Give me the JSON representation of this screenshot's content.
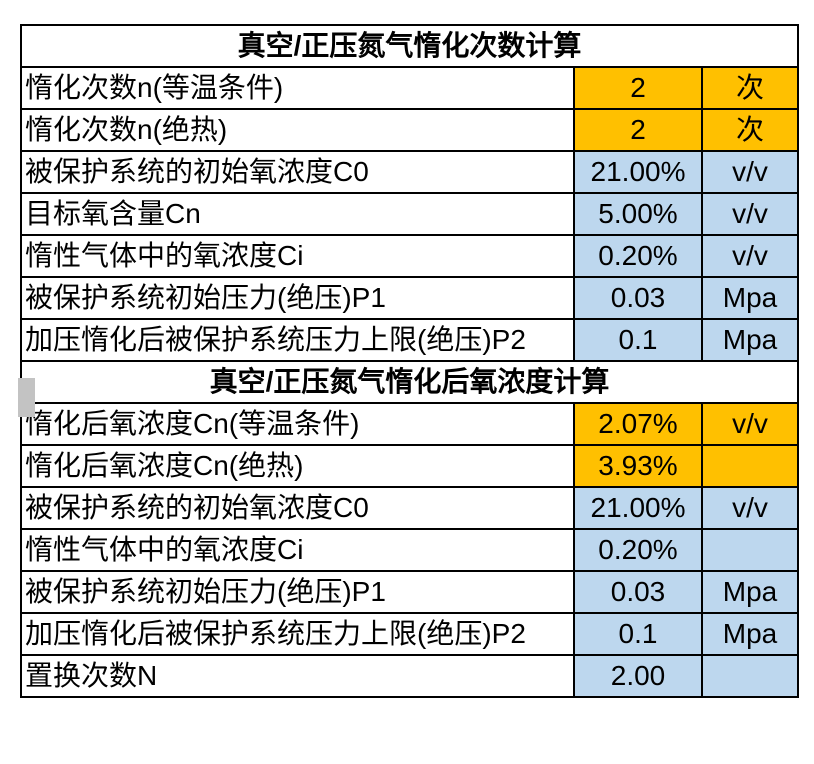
{
  "colors": {
    "result_highlight": "#FFC000",
    "input_highlight": "#BDD7EE",
    "border": "#000000",
    "gray_marker": "#C3C3C3"
  },
  "sections": [
    {
      "title": "真空/正压氮气惰化次数计算",
      "rows": [
        {
          "label": "惰化次数n(等温条件)",
          "value": "2",
          "unit": "次",
          "highlight": "orange"
        },
        {
          "label": "惰化次数n(绝热)",
          "value": "2",
          "unit": "次",
          "highlight": "orange"
        },
        {
          "label": "被保护系统的初始氧浓度C0",
          "value": "21.00%",
          "unit": "v/v",
          "highlight": "blue"
        },
        {
          "label": "目标氧含量Cn",
          "value": "5.00%",
          "unit": "v/v",
          "highlight": "blue"
        },
        {
          "label": "惰性气体中的氧浓度Ci",
          "value": "0.20%",
          "unit": "v/v",
          "highlight": "blue"
        },
        {
          "label": "被保护系统初始压力(绝压)P1",
          "value": "0.03",
          "unit": "Mpa",
          "highlight": "blue"
        },
        {
          "label": "加压惰化后被保护系统压力上限(绝压)P2",
          "value": "0.1",
          "unit": "Mpa",
          "highlight": "blue"
        }
      ]
    },
    {
      "title": "真空/正压氮气惰化后氧浓度计算",
      "rows": [
        {
          "label": "惰化后氧浓度Cn(等温条件)",
          "value": "2.07%",
          "unit": "v/v",
          "highlight": "orange"
        },
        {
          "label": "惰化后氧浓度Cn(绝热)",
          "value": "3.93%",
          "unit": "",
          "highlight": "orange"
        },
        {
          "label": "被保护系统的初始氧浓度C0",
          "value": "21.00%",
          "unit": "v/v",
          "highlight": "blue"
        },
        {
          "label": "惰性气体中的氧浓度Ci",
          "value": "0.20%",
          "unit": "",
          "highlight": "blue"
        },
        {
          "label": "被保护系统初始压力(绝压)P1",
          "value": "0.03",
          "unit": "Mpa",
          "highlight": "blue"
        },
        {
          "label": "加压惰化后被保护系统压力上限(绝压)P2",
          "value": "0.1",
          "unit": "Mpa",
          "highlight": "blue"
        },
        {
          "label": "置换次数N",
          "value": "2.00",
          "unit": "",
          "highlight": "blue"
        }
      ]
    }
  ]
}
